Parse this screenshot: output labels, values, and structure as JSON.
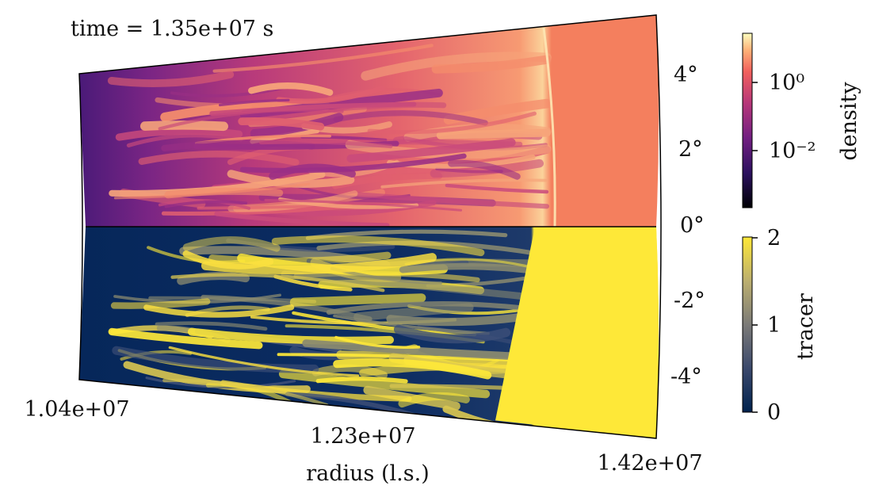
{
  "chart_data": {
    "type": "heatmap",
    "title": "time = 1.35e+07 s",
    "xlabel": "radius (l.s.)",
    "radial_ticks": [
      "1.04e+07",
      "1.23e+07",
      "1.42e+07"
    ],
    "angle_ticks": [
      "4°",
      "2°",
      "0°",
      "-2°",
      "-4°"
    ],
    "xlim": [
      10400000.0,
      14200000.0
    ],
    "theta_lim": [
      -5,
      5
    ],
    "panels": [
      {
        "field": "density",
        "theta_range": [
          0,
          5
        ],
        "colormap": "magma",
        "scale": "log"
      },
      {
        "field": "tracer",
        "theta_range": [
          -5,
          0
        ],
        "colormap": "cividis",
        "scale": "linear"
      }
    ],
    "colorbars": [
      {
        "label": "density",
        "scale": "log",
        "ticks": [
          "10⁰",
          "10⁻²"
        ]
      },
      {
        "label": "tracer",
        "scale": "linear",
        "ticks": [
          "2",
          "1",
          "0"
        ],
        "range": [
          0,
          2
        ]
      }
    ],
    "colors": {
      "density_dark": "#1a0b35",
      "density_mid": "#b5367a",
      "density_light": "#f8a070",
      "density_shocked": "#f47f5e",
      "tracer_low": "#00224e",
      "tracer_mid": "#7b7b78",
      "tracer_high": "#fee838"
    }
  }
}
